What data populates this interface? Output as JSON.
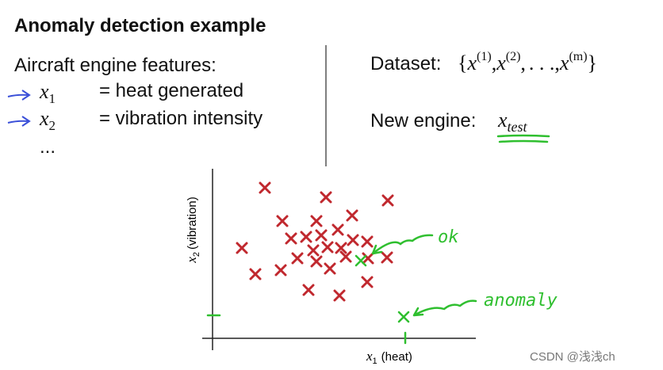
{
  "title": "Anomaly detection example",
  "left": {
    "heading": "Aircraft engine features:",
    "features": [
      {
        "symbol": "x",
        "sub": "1",
        "text": "= heat generated"
      },
      {
        "symbol": "x",
        "sub": "2",
        "text": "= vibration intensity"
      }
    ],
    "ellipsis": "..."
  },
  "right": {
    "dataset_label": "Dataset:",
    "open": "{",
    "separator": ",",
    "close": "}",
    "items": [
      {
        "base": "x",
        "sup": "(1)"
      },
      {
        "base": "x",
        "sup": "(2)"
      }
    ],
    "dots": ". . .",
    "last": {
      "base": "x",
      "sup": "(m)"
    },
    "new_label": "New engine:",
    "test": {
      "base": "x",
      "sub": "test"
    }
  },
  "plot": {
    "y_label": {
      "symbol": "x",
      "sub": "2",
      "text": "(vibration)"
    },
    "x_label": {
      "symbol": "x",
      "sub": "1",
      "text": "(heat)"
    },
    "notes": [
      "ok",
      "anomaly"
    ]
  },
  "watermark": "CSDN @浅浅ch"
}
